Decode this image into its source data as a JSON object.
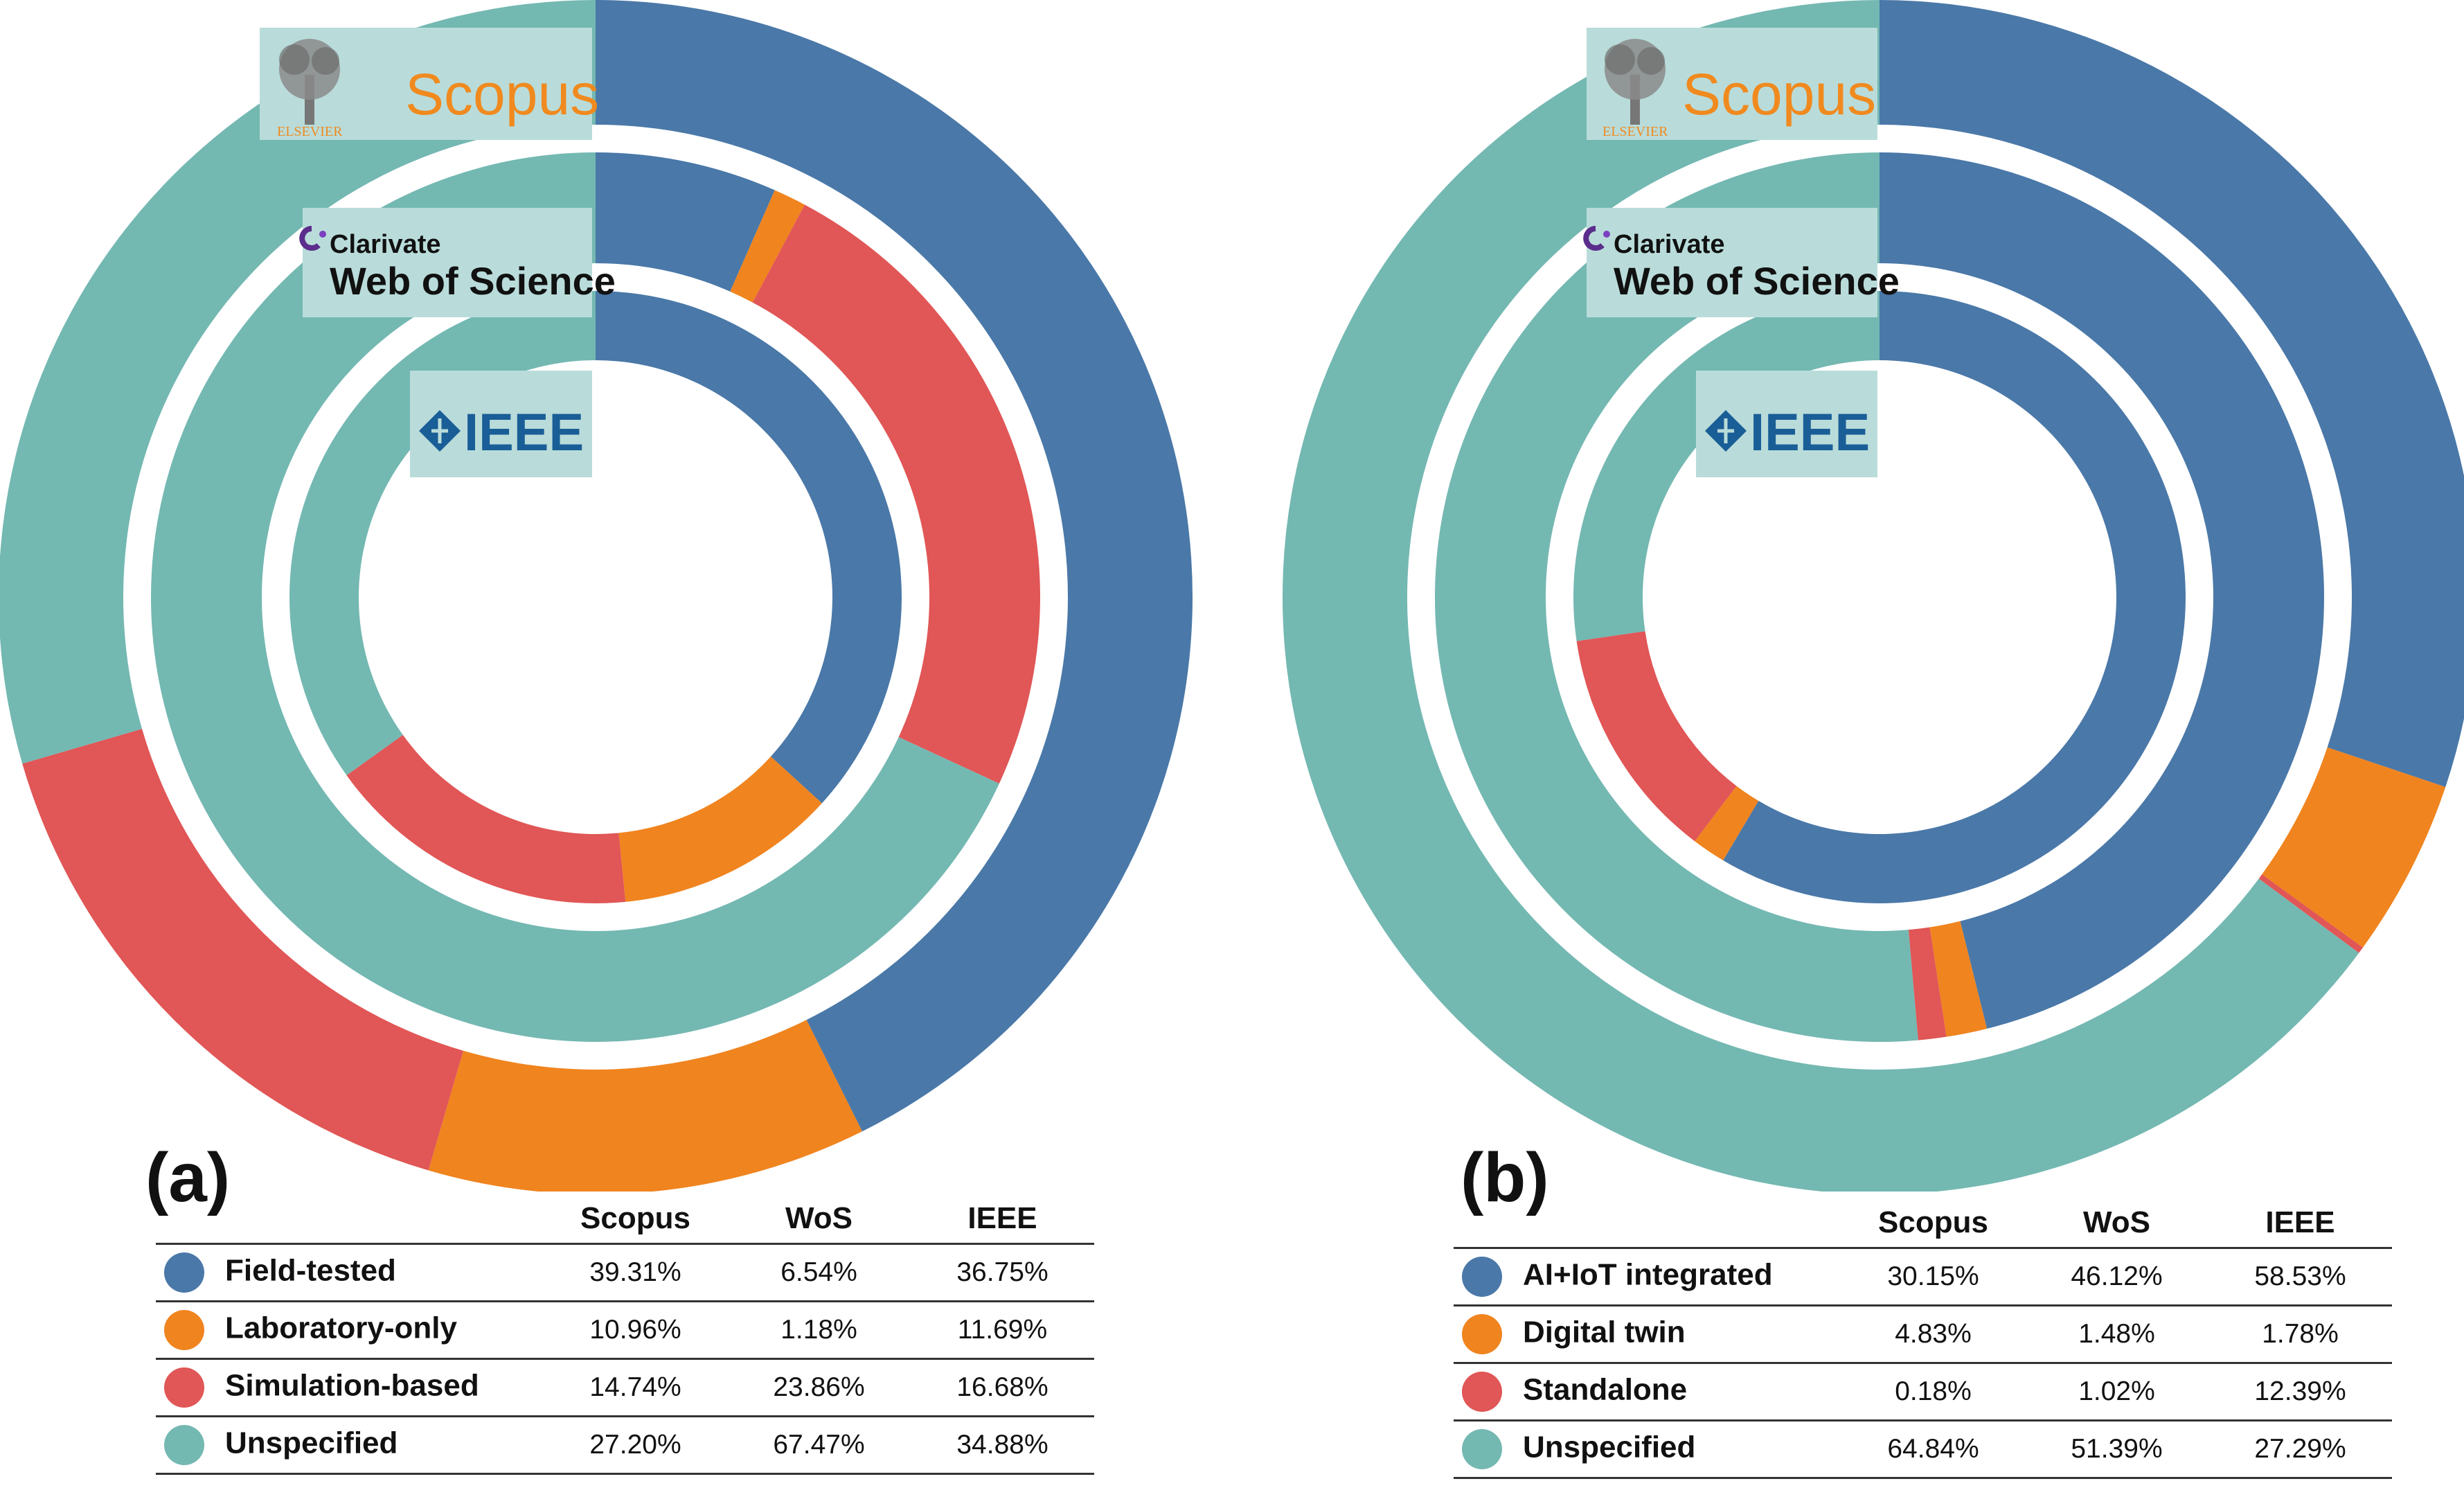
{
  "colors": {
    "blue": "#4a78a8",
    "orange": "#f0841f",
    "red": "#e15656",
    "teal": "#74b8b2",
    "logo_bg": "#b9dcda"
  },
  "logos": {
    "scopus": "Scopus",
    "elsevier": "ELSEVIER",
    "clarivate": "Clarivate",
    "wos": "Web of Science",
    "ieee": "IEEE"
  },
  "chart_data": [
    {
      "type": "pie",
      "variant": "nested-donut",
      "panel": "(a)",
      "rings_outer_to_inner": [
        "Scopus",
        "WoS",
        "IEEE"
      ],
      "columns": [
        "Scopus",
        "WoS",
        "IEEE"
      ],
      "series": [
        {
          "name": "Field-tested",
          "color": "#4a78a8",
          "values": [
            39.31,
            6.54,
            36.75
          ],
          "labels": [
            "39.31%",
            "6.54%",
            "36.75%"
          ]
        },
        {
          "name": "Laboratory-only",
          "color": "#f0841f",
          "values": [
            10.96,
            1.18,
            11.69
          ],
          "labels": [
            "10.96%",
            "1.18%",
            "11.69%"
          ]
        },
        {
          "name": "Simulation-based",
          "color": "#e15656",
          "values": [
            14.74,
            23.86,
            16.68
          ],
          "labels": [
            "14.74%",
            "23.86%",
            "16.68%"
          ]
        },
        {
          "name": "Unspecified",
          "color": "#74b8b2",
          "values": [
            27.2,
            67.47,
            34.88
          ],
          "labels": [
            "27.20%",
            "67.47%",
            "34.88%"
          ]
        }
      ]
    },
    {
      "type": "pie",
      "variant": "nested-donut",
      "panel": "(b)",
      "rings_outer_to_inner": [
        "Scopus",
        "WoS",
        "IEEE"
      ],
      "columns": [
        "Scopus",
        "WoS",
        "IEEE"
      ],
      "series": [
        {
          "name": "AI+IoT integrated",
          "color": "#4a78a8",
          "values": [
            30.15,
            46.12,
            58.53
          ],
          "labels": [
            "30.15%",
            "46.12%",
            "58.53%"
          ]
        },
        {
          "name": "Digital twin",
          "color": "#f0841f",
          "values": [
            4.83,
            1.48,
            1.78
          ],
          "labels": [
            "4.83%",
            "1.48%",
            "1.78%"
          ]
        },
        {
          "name": "Standalone",
          "color": "#e15656",
          "values": [
            0.18,
            1.02,
            12.39
          ],
          "labels": [
            "0.18%",
            "1.02%",
            "12.39%"
          ]
        },
        {
          "name": "Unspecified",
          "color": "#74b8b2",
          "values": [
            64.84,
            51.39,
            27.29
          ],
          "labels": [
            "64.84%",
            "51.39%",
            "27.29%"
          ]
        }
      ]
    }
  ]
}
